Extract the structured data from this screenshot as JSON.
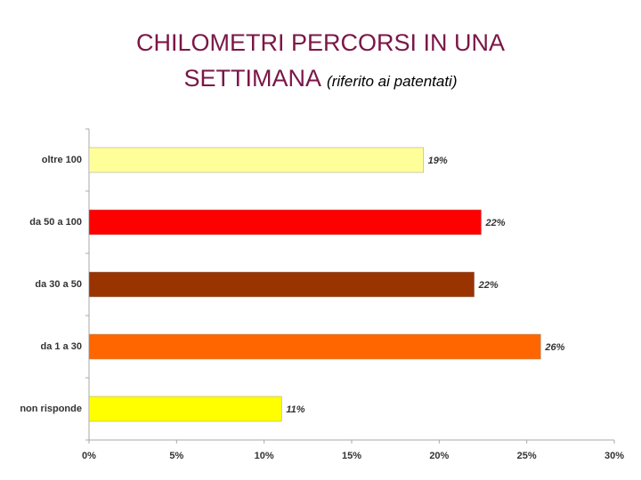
{
  "chart_data": {
    "type": "hbar",
    "title": "CHILOMETRI PERCORSI IN UNA SETTIMANA",
    "subtitle": "(riferito ai patentati)",
    "categories": [
      "oltre 100",
      "da 50 a 100",
      "da 30 a 50",
      "da 1 a 30",
      "non risponde"
    ],
    "values": [
      19.1,
      22.4,
      22,
      25.8,
      11
    ],
    "value_labels": [
      "19%",
      "22%",
      "22%",
      "26%",
      "11%"
    ],
    "colors": [
      "#ffff99",
      "#ff0000",
      "#993300",
      "#ff6600",
      "#ffff00"
    ],
    "xlim": [
      0,
      30
    ],
    "xticks": [
      {
        "value": 0,
        "label": "0%"
      },
      {
        "value": 5,
        "label": "5%"
      },
      {
        "value": 10,
        "label": "10%"
      },
      {
        "value": 15,
        "label": "15%"
      },
      {
        "value": 20,
        "label": "20%"
      },
      {
        "value": 25,
        "label": "25%"
      },
      {
        "value": 30,
        "label": "30%"
      }
    ]
  }
}
